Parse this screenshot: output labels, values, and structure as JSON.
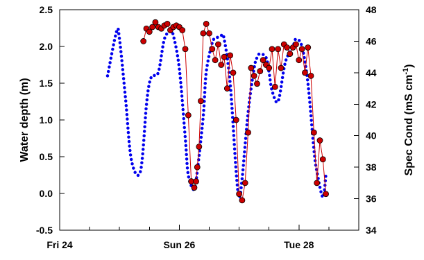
{
  "chart_data": {
    "type": "line",
    "title": "",
    "xlabel": "",
    "ylabel": "Water depth (m)",
    "y2label_main": "Spec Cond (mS cm",
    "y2label_sup": "-1",
    "y2label_end": ")",
    "x_range_days": [
      0,
      5
    ],
    "x_ticks": [
      {
        "pos": 0,
        "label": "Fri 24"
      },
      {
        "pos": 0.5,
        "label": ""
      },
      {
        "pos": 1,
        "label": ""
      },
      {
        "pos": 1.5,
        "label": ""
      },
      {
        "pos": 2,
        "label": "Sun 26"
      },
      {
        "pos": 2.5,
        "label": ""
      },
      {
        "pos": 3,
        "label": ""
      },
      {
        "pos": 3.5,
        "label": ""
      },
      {
        "pos": 4,
        "label": "Tue 28"
      },
      {
        "pos": 4.5,
        "label": ""
      },
      {
        "pos": 5,
        "label": ""
      }
    ],
    "ylim": [
      -0.5,
      2.5
    ],
    "y_ticks": [
      {
        "v": -0.5,
        "label": "-0.5"
      },
      {
        "v": 0.0,
        "label": "0.0"
      },
      {
        "v": 0.5,
        "label": "0.5"
      },
      {
        "v": 1.0,
        "label": "1.0"
      },
      {
        "v": 1.5,
        "label": "1.5"
      },
      {
        "v": 2.0,
        "label": "2.0"
      },
      {
        "v": 2.5,
        "label": "2.5"
      }
    ],
    "y2lim": [
      34,
      48
    ],
    "y2_ticks": [
      {
        "v": 34,
        "label": "34"
      },
      {
        "v": 36,
        "label": "36"
      },
      {
        "v": 38,
        "label": "38"
      },
      {
        "v": 40,
        "label": "40"
      },
      {
        "v": 42,
        "label": "42"
      },
      {
        "v": 44,
        "label": "44"
      },
      {
        "v": 46,
        "label": "46"
      },
      {
        "v": 48,
        "label": "48"
      }
    ],
    "grid": false,
    "series": [
      {
        "axis": "left",
        "style": "dotted",
        "color": "#0000ee",
        "x": [
          0.8,
          0.95,
          1.0,
          1.1,
          1.2,
          1.35,
          1.45,
          1.5,
          1.55,
          1.65,
          1.75,
          1.85,
          1.9,
          2.0,
          2.1,
          2.15,
          2.25,
          2.3,
          2.4,
          2.45,
          2.55,
          2.6,
          2.7,
          2.75,
          2.85,
          2.95,
          3.0,
          3.05,
          3.15,
          3.25,
          3.3,
          3.35,
          3.45,
          3.5,
          3.55,
          3.65,
          3.75,
          3.8,
          3.9,
          3.95,
          4.05,
          4.15,
          4.25,
          4.3,
          4.4,
          4.45
        ],
        "y": [
          1.6,
          2.2,
          2.1,
          1.3,
          0.45,
          0.3,
          1.2,
          1.5,
          1.6,
          1.65,
          2.1,
          2.2,
          2.15,
          1.7,
          0.75,
          0.25,
          0.05,
          0.3,
          1.05,
          1.65,
          2.05,
          2.1,
          2.15,
          2.1,
          1.5,
          0.3,
          -0.05,
          0.2,
          1.1,
          1.7,
          1.85,
          1.9,
          1.85,
          1.65,
          1.4,
          1.25,
          1.7,
          1.85,
          2.0,
          2.1,
          2.0,
          1.5,
          0.6,
          0.3,
          -0.05,
          0.25
        ]
      },
      {
        "axis": "right",
        "style": "line-markers",
        "color": "#cc0000",
        "marker_fill": "#cc0000",
        "x": [
          1.4,
          1.45,
          1.5,
          1.55,
          1.6,
          1.65,
          1.7,
          1.75,
          1.8,
          1.85,
          1.9,
          1.95,
          2.0,
          2.05,
          2.1,
          2.15,
          2.2,
          2.25,
          2.28,
          2.3,
          2.33,
          2.36,
          2.4,
          2.45,
          2.5,
          2.55,
          2.6,
          2.65,
          2.7,
          2.75,
          2.8,
          2.85,
          2.9,
          2.95,
          3.0,
          3.05,
          3.1,
          3.15,
          3.2,
          3.25,
          3.3,
          3.35,
          3.4,
          3.45,
          3.5,
          3.55,
          3.6,
          3.65,
          3.7,
          3.75,
          3.8,
          3.85,
          3.9,
          3.95,
          4.0,
          4.05,
          4.1,
          4.15,
          4.2,
          4.25,
          4.3,
          4.35,
          4.4,
          4.45
        ],
        "y": [
          46.0,
          46.8,
          46.6,
          46.9,
          47.2,
          46.9,
          46.8,
          47.0,
          47.1,
          46.7,
          46.9,
          47.0,
          46.9,
          46.7,
          45.5,
          41.3,
          37.1,
          36.7,
          37.1,
          38.0,
          39.3,
          42.2,
          46.5,
          47.1,
          46.5,
          45.5,
          44.8,
          45.8,
          44.5,
          45.0,
          43.0,
          45.1,
          44.0,
          41.0,
          36.3,
          35.9,
          37.0,
          40.2,
          44.3,
          43.8,
          43.3,
          44.1,
          44.8,
          44.5,
          44.3,
          45.5,
          43.1,
          45.5,
          44.3,
          45.8,
          45.6,
          45.2,
          45.6,
          45.8,
          44.8,
          45.5,
          44.0,
          45.6,
          43.8,
          40.2,
          37.0,
          39.7,
          38.5,
          36.3
        ]
      }
    ]
  }
}
